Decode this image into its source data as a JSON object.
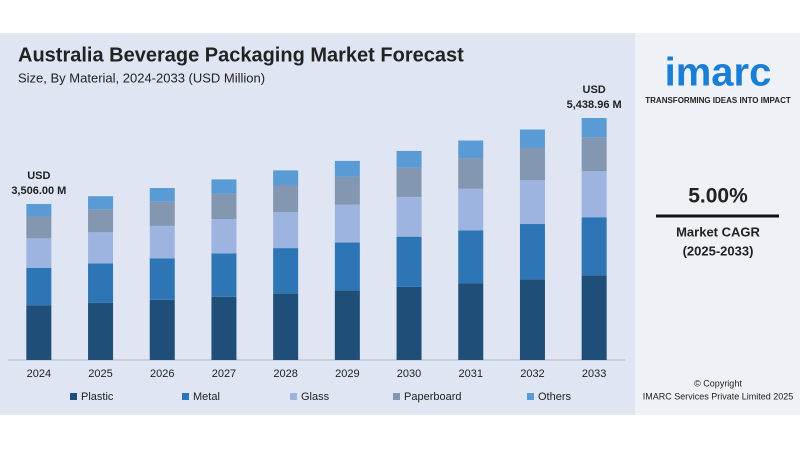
{
  "chart_data": {
    "type": "stacked_bar",
    "title": "Australia Beverage Packaging Market Forecast",
    "subtitle": "Size, By Material, 2024-2033 (USD Million)",
    "categories": [
      "2024",
      "2025",
      "2026",
      "2027",
      "2028",
      "2029",
      "2030",
      "2031",
      "2032",
      "2033"
    ],
    "series": [
      {
        "name": "Plastic",
        "color": "#1f4e79",
        "values": [
          1227.1,
          1288,
          1353,
          1421,
          1492,
          1566,
          1644,
          1727,
          1813,
          1903.6
        ]
      },
      {
        "name": "Metal",
        "color": "#2e75b6",
        "values": [
          841.4,
          883,
          928,
          974,
          1023,
          1074,
          1128,
          1184,
          1243,
          1305.4
        ]
      },
      {
        "name": "Glass",
        "color": "#9db3e0",
        "values": [
          666.1,
          699,
          734,
          771,
          810,
          850,
          893,
          937,
          984,
          1033.4
        ]
      },
      {
        "name": "Paperboard",
        "color": "#8497b0",
        "values": [
          490.8,
          515,
          541,
          568,
          597,
          627,
          658,
          691,
          725,
          761.5
        ]
      },
      {
        "name": "Others",
        "color": "#5b9bd5",
        "values": [
          280.6,
          296,
          309,
          325,
          340,
          358,
          375,
          394,
          415,
          435.06
        ]
      }
    ],
    "total_labels": [
      {
        "category": "2024",
        "unit": "USD",
        "label": "3,506.00 M",
        "value": 3506
      },
      {
        "category": "2033",
        "unit": "USD",
        "label": "5,438.96 M",
        "value": 5438.96
      }
    ]
  },
  "sidebar": {
    "logo": "imarc",
    "tagline": "TRANSFORMING IDEAS INTO IMPACT",
    "cagr": "5.00%",
    "cagr_label": "Market CAGR",
    "cagr_period": "(2025-2033)",
    "copyright": "© Copyright",
    "company": "IMARC Services Private Limited 2025"
  }
}
